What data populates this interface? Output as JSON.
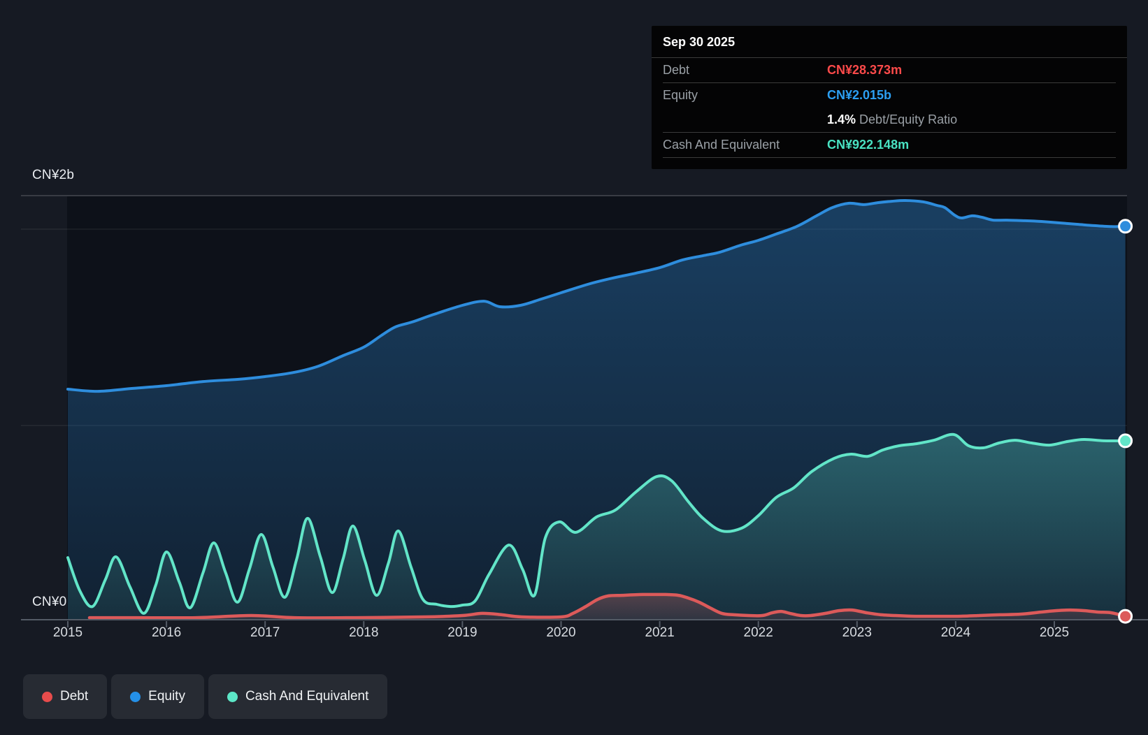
{
  "axis": {
    "y_top_label": "CN¥2b",
    "y_zero_label": "CN¥0",
    "years": [
      "2015",
      "2016",
      "2017",
      "2018",
      "2019",
      "2020",
      "2021",
      "2022",
      "2023",
      "2024",
      "2025"
    ]
  },
  "tooltip": {
    "date": "Sep 30 2025",
    "debt_label": "Debt",
    "debt_value": "CN¥28.373m",
    "equity_label": "Equity",
    "equity_value": "CN¥2.015b",
    "ratio_value": "1.4%",
    "ratio_label": "Debt/Equity Ratio",
    "cash_label": "Cash And Equivalent",
    "cash_value": "CN¥922.148m"
  },
  "legend": [
    {
      "label": "Debt",
      "color": "#e84c4c"
    },
    {
      "label": "Equity",
      "color": "#2490e8"
    },
    {
      "label": "Cash And Equivalent",
      "color": "#5ce6c7"
    }
  ],
  "colors": {
    "background": "#161a23",
    "plot_background": "#0d1119",
    "debt_line": "#dc5a5a",
    "equity_line": "#2e8ddd",
    "cash_line": "#62e5c8",
    "debt_value_text": "#fc4a4a",
    "equity_value_text": "#2c9ff2",
    "cash_value_text": "#49e2c2",
    "axis_line": "#545b66",
    "gridline_bright": "rgba(255,255,255,0.30)",
    "gridline_faint": "rgba(255,255,255,0.10)"
  },
  "chart_data": {
    "type": "area",
    "title": "Debt to Equity History and Analysis",
    "x_unit": "year",
    "y_unit": "CN¥ billions",
    "xlim": [
      2015.0,
      2025.75
    ],
    "ylim": [
      0,
      2.17
    ],
    "y_gridline_values": [
      1,
      2
    ],
    "x_tick_years": [
      2015,
      2016,
      2017,
      2018,
      2019,
      2020,
      2021,
      2022,
      2023,
      2024,
      2025
    ],
    "legend_position": "bottom-left",
    "end_markers": true,
    "series": [
      {
        "name": "Equity",
        "color": "#2e8ddd",
        "current_label": "CN¥2.015b",
        "points": [
          [
            2015.0,
            1.185
          ],
          [
            2015.3,
            1.174
          ],
          [
            2015.66,
            1.189
          ],
          [
            2016.0,
            1.203
          ],
          [
            2016.37,
            1.224
          ],
          [
            2016.72,
            1.235
          ],
          [
            2017.0,
            1.249
          ],
          [
            2017.29,
            1.27
          ],
          [
            2017.54,
            1.302
          ],
          [
            2017.79,
            1.356
          ],
          [
            2018.0,
            1.399
          ],
          [
            2018.18,
            1.459
          ],
          [
            2018.32,
            1.502
          ],
          [
            2018.49,
            1.527
          ],
          [
            2018.71,
            1.566
          ],
          [
            2019.0,
            1.612
          ],
          [
            2019.22,
            1.633
          ],
          [
            2019.38,
            1.605
          ],
          [
            2019.59,
            1.612
          ],
          [
            2019.8,
            1.644
          ],
          [
            2020.0,
            1.676
          ],
          [
            2020.27,
            1.719
          ],
          [
            2020.49,
            1.747
          ],
          [
            2020.76,
            1.776
          ],
          [
            2021.0,
            1.804
          ],
          [
            2021.23,
            1.843
          ],
          [
            2021.44,
            1.865
          ],
          [
            2021.61,
            1.883
          ],
          [
            2021.82,
            1.918
          ],
          [
            2022.0,
            1.943
          ],
          [
            2022.18,
            1.975
          ],
          [
            2022.39,
            2.014
          ],
          [
            2022.6,
            2.071
          ],
          [
            2022.75,
            2.11
          ],
          [
            2022.92,
            2.132
          ],
          [
            2023.07,
            2.125
          ],
          [
            2023.21,
            2.135
          ],
          [
            2023.35,
            2.142
          ],
          [
            2023.49,
            2.146
          ],
          [
            2023.67,
            2.139
          ],
          [
            2023.81,
            2.121
          ],
          [
            2023.89,
            2.11
          ],
          [
            2023.99,
            2.071
          ],
          [
            2024.06,
            2.057
          ],
          [
            2024.17,
            2.068
          ],
          [
            2024.27,
            2.06
          ],
          [
            2024.38,
            2.046
          ],
          [
            2024.52,
            2.046
          ],
          [
            2024.7,
            2.043
          ],
          [
            2024.87,
            2.039
          ],
          [
            2025.05,
            2.032
          ],
          [
            2025.23,
            2.025
          ],
          [
            2025.4,
            2.018
          ],
          [
            2025.58,
            2.013
          ],
          [
            2025.72,
            2.015
          ]
        ]
      },
      {
        "name": "Cash And Equivalent",
        "color": "#62e5c8",
        "current_label": "CN¥922.148m",
        "points": [
          [
            2015.0,
            0.327
          ],
          [
            2015.12,
            0.16
          ],
          [
            2015.25,
            0.078
          ],
          [
            2015.38,
            0.214
          ],
          [
            2015.49,
            0.331
          ],
          [
            2015.63,
            0.178
          ],
          [
            2015.77,
            0.043
          ],
          [
            2015.89,
            0.185
          ],
          [
            2016.0,
            0.356
          ],
          [
            2016.13,
            0.203
          ],
          [
            2016.24,
            0.071
          ],
          [
            2016.37,
            0.249
          ],
          [
            2016.48,
            0.402
          ],
          [
            2016.6,
            0.249
          ],
          [
            2016.72,
            0.1
          ],
          [
            2016.84,
            0.267
          ],
          [
            2016.96,
            0.445
          ],
          [
            2017.08,
            0.278
          ],
          [
            2017.2,
            0.125
          ],
          [
            2017.32,
            0.32
          ],
          [
            2017.43,
            0.527
          ],
          [
            2017.56,
            0.331
          ],
          [
            2017.68,
            0.149
          ],
          [
            2017.79,
            0.32
          ],
          [
            2017.89,
            0.488
          ],
          [
            2018.01,
            0.313
          ],
          [
            2018.13,
            0.135
          ],
          [
            2018.25,
            0.299
          ],
          [
            2018.35,
            0.463
          ],
          [
            2018.48,
            0.278
          ],
          [
            2018.6,
            0.114
          ],
          [
            2018.74,
            0.089
          ],
          [
            2018.88,
            0.078
          ],
          [
            2019.0,
            0.085
          ],
          [
            2019.13,
            0.107
          ],
          [
            2019.27,
            0.242
          ],
          [
            2019.47,
            0.391
          ],
          [
            2019.61,
            0.267
          ],
          [
            2019.73,
            0.135
          ],
          [
            2019.84,
            0.427
          ],
          [
            2019.98,
            0.509
          ],
          [
            2020.15,
            0.456
          ],
          [
            2020.36,
            0.534
          ],
          [
            2020.55,
            0.569
          ],
          [
            2020.76,
            0.662
          ],
          [
            2020.97,
            0.74
          ],
          [
            2021.12,
            0.719
          ],
          [
            2021.29,
            0.612
          ],
          [
            2021.44,
            0.527
          ],
          [
            2021.63,
            0.463
          ],
          [
            2021.83,
            0.477
          ],
          [
            2022.0,
            0.541
          ],
          [
            2022.18,
            0.633
          ],
          [
            2022.36,
            0.683
          ],
          [
            2022.54,
            0.765
          ],
          [
            2022.77,
            0.833
          ],
          [
            2022.94,
            0.854
          ],
          [
            2023.11,
            0.843
          ],
          [
            2023.26,
            0.875
          ],
          [
            2023.43,
            0.897
          ],
          [
            2023.6,
            0.907
          ],
          [
            2023.78,
            0.925
          ],
          [
            2023.98,
            0.954
          ],
          [
            2024.13,
            0.897
          ],
          [
            2024.28,
            0.886
          ],
          [
            2024.44,
            0.911
          ],
          [
            2024.6,
            0.925
          ],
          [
            2024.77,
            0.911
          ],
          [
            2024.95,
            0.9
          ],
          [
            2025.13,
            0.918
          ],
          [
            2025.3,
            0.929
          ],
          [
            2025.5,
            0.922
          ],
          [
            2025.72,
            0.922
          ]
        ]
      },
      {
        "name": "Debt",
        "color": "#dc5a5a",
        "current_label": "CN¥28.373m",
        "points": [
          [
            2015.22,
            0.021
          ],
          [
            2015.7,
            0.021
          ],
          [
            2016.3,
            0.021
          ],
          [
            2016.86,
            0.032
          ],
          [
            2017.3,
            0.021
          ],
          [
            2017.9,
            0.021
          ],
          [
            2018.6,
            0.025
          ],
          [
            2019.0,
            0.032
          ],
          [
            2019.2,
            0.043
          ],
          [
            2019.4,
            0.036
          ],
          [
            2019.6,
            0.025
          ],
          [
            2020.0,
            0.025
          ],
          [
            2020.12,
            0.043
          ],
          [
            2020.25,
            0.078
          ],
          [
            2020.37,
            0.114
          ],
          [
            2020.48,
            0.132
          ],
          [
            2020.62,
            0.135
          ],
          [
            2020.83,
            0.139
          ],
          [
            2021.05,
            0.139
          ],
          [
            2021.19,
            0.135
          ],
          [
            2021.29,
            0.121
          ],
          [
            2021.4,
            0.1
          ],
          [
            2021.51,
            0.071
          ],
          [
            2021.63,
            0.043
          ],
          [
            2021.75,
            0.036
          ],
          [
            2021.9,
            0.032
          ],
          [
            2022.04,
            0.032
          ],
          [
            2022.14,
            0.046
          ],
          [
            2022.23,
            0.053
          ],
          [
            2022.32,
            0.043
          ],
          [
            2022.43,
            0.032
          ],
          [
            2022.53,
            0.032
          ],
          [
            2022.68,
            0.043
          ],
          [
            2022.82,
            0.057
          ],
          [
            2022.95,
            0.06
          ],
          [
            2023.1,
            0.046
          ],
          [
            2023.24,
            0.036
          ],
          [
            2023.39,
            0.032
          ],
          [
            2023.6,
            0.028
          ],
          [
            2023.81,
            0.028
          ],
          [
            2024.02,
            0.028
          ],
          [
            2024.24,
            0.032
          ],
          [
            2024.45,
            0.036
          ],
          [
            2024.66,
            0.039
          ],
          [
            2024.87,
            0.05
          ],
          [
            2025.02,
            0.057
          ],
          [
            2025.16,
            0.06
          ],
          [
            2025.3,
            0.057
          ],
          [
            2025.44,
            0.05
          ],
          [
            2025.58,
            0.046
          ],
          [
            2025.72,
            0.028
          ]
        ]
      }
    ]
  }
}
